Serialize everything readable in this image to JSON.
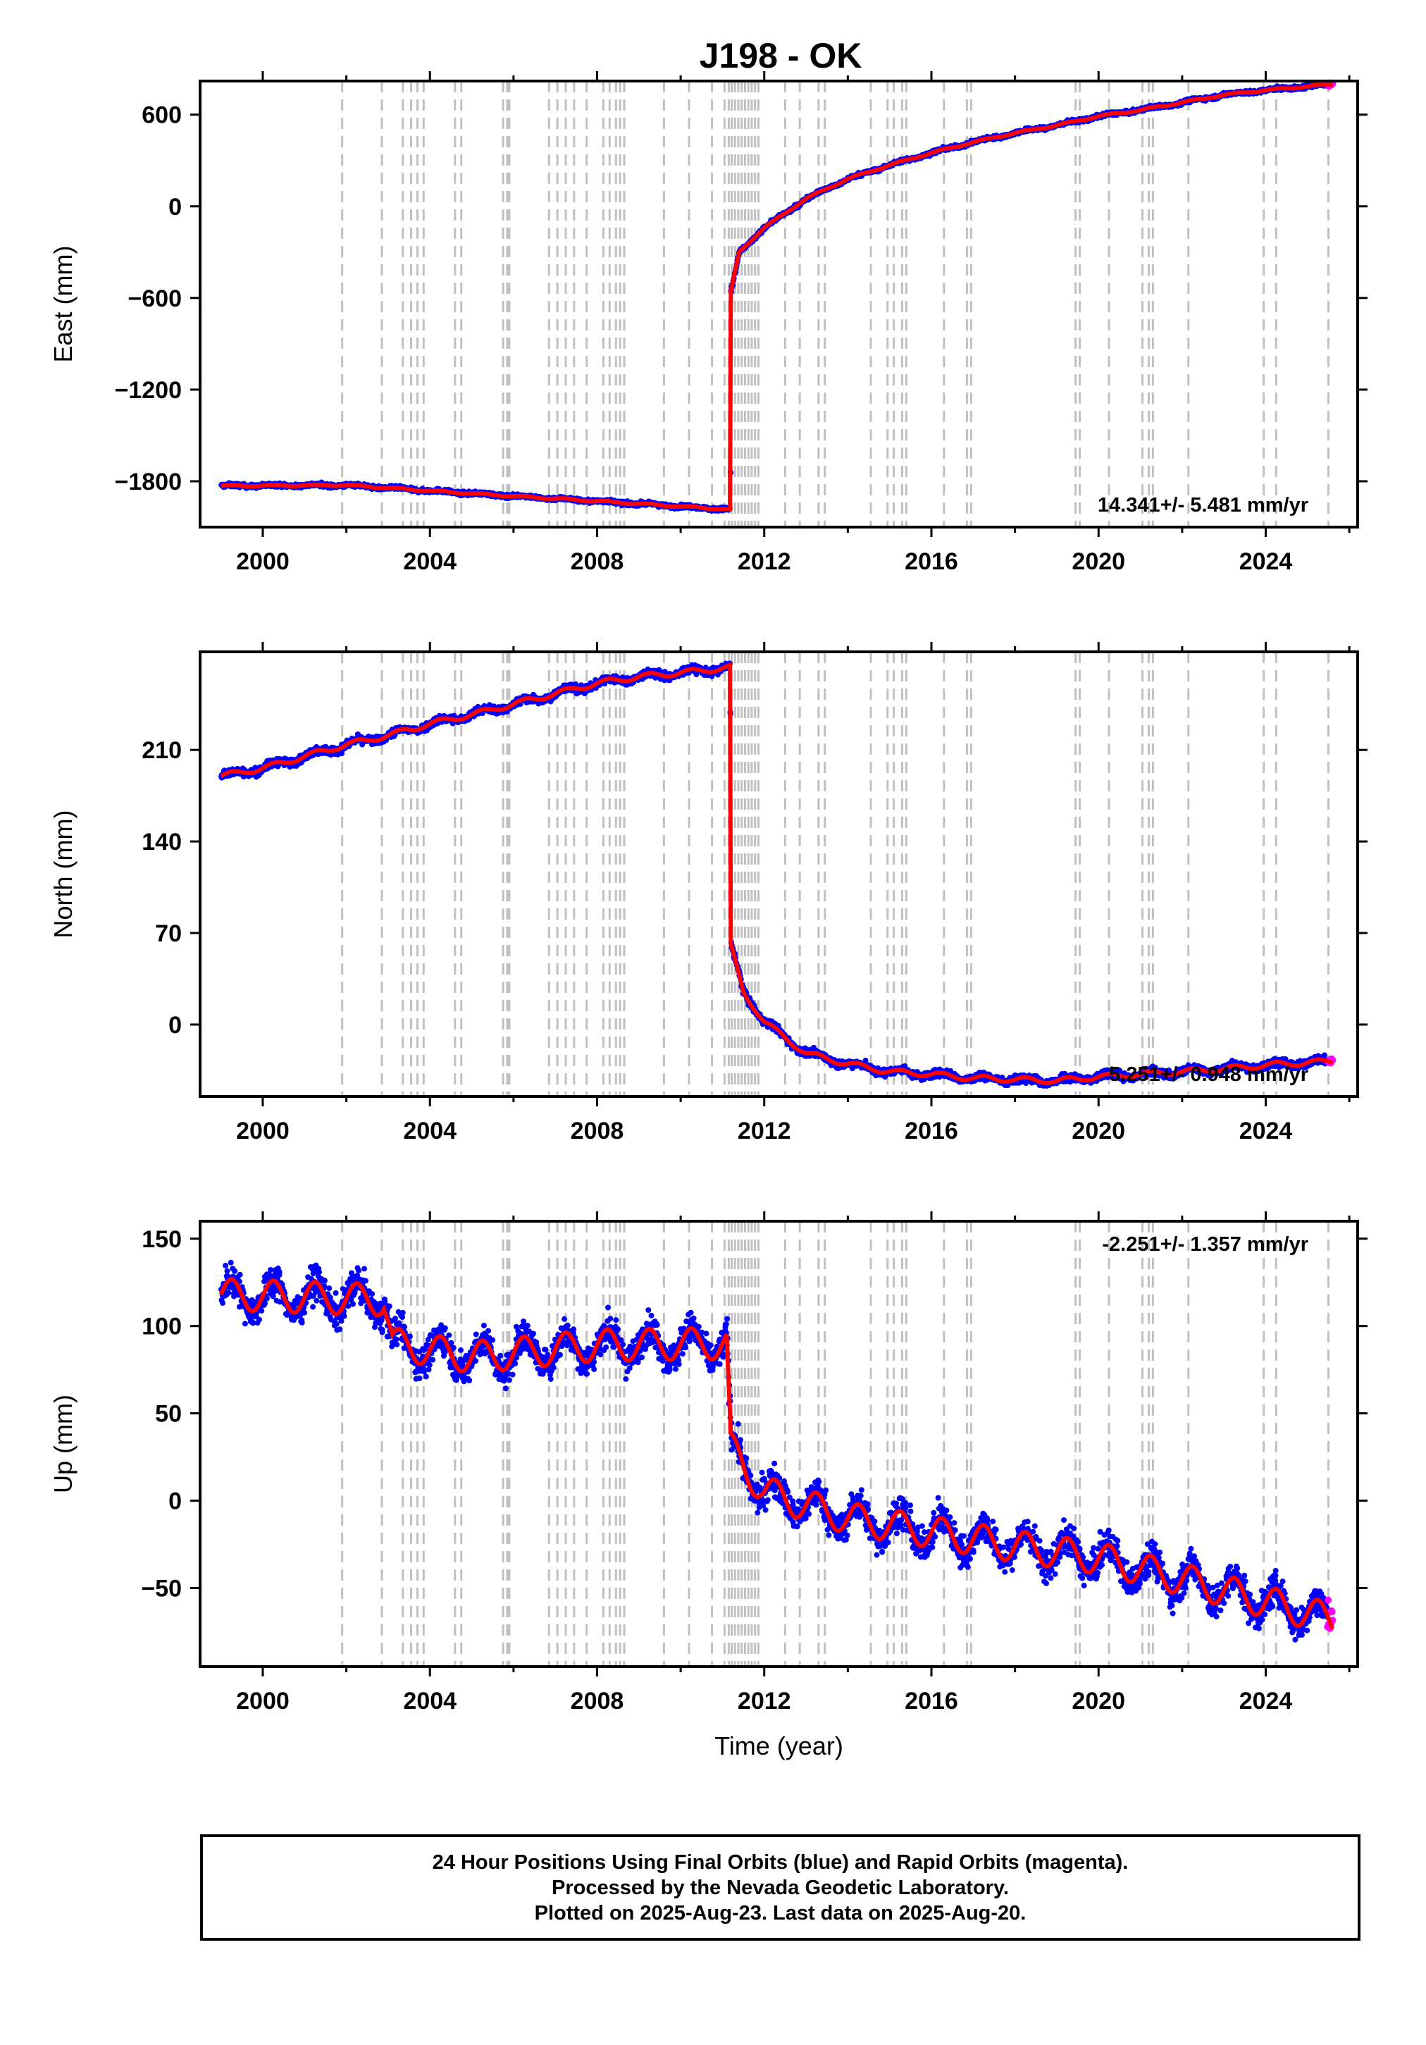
{
  "title": "J198 - OK",
  "footer": {
    "line1": "24 Hour Positions Using Final Orbits (blue) and Rapid Orbits (magenta).",
    "line2": "Processed by the Nevada Geodetic Laboratory.",
    "line3": "Plotted on 2025-Aug-23. Last data on 2025-Aug-20."
  },
  "colors": {
    "final_orbits": "#0000ff",
    "rapid_orbits": "#ff00ff",
    "model": "#ff0000",
    "event_lines": "#c0c0c0"
  },
  "chart_data": [
    {
      "type": "scatter",
      "name": "east",
      "xlabel": "",
      "ylabel": "East (mm)",
      "xlim": [
        1998.5,
        2026.2
      ],
      "ylim": [
        -2100,
        820
      ],
      "xticks": [
        2000,
        2004,
        2008,
        2012,
        2016,
        2020,
        2024
      ],
      "xtick_labels": [
        "2000",
        "2004",
        "2008",
        "2012",
        "2016",
        "2020",
        "2024"
      ],
      "yticks": [
        -1800,
        -1200,
        -600,
        0,
        600
      ],
      "ytick_labels": [
        "−1800",
        "−1200",
        "−600",
        "0",
        "600"
      ],
      "rate_label": "14.341+/- 5.481 mm/yr",
      "trend_points": [
        [
          1999.0,
          -1830
        ],
        [
          2002.0,
          -1825
        ],
        [
          2005.0,
          -1880
        ],
        [
          2008.0,
          -1930
        ],
        [
          2011.18,
          -1985
        ],
        [
          2011.2,
          -560
        ],
        [
          2011.4,
          -300
        ],
        [
          2012.0,
          -140
        ],
        [
          2013.0,
          50
        ],
        [
          2014.0,
          180
        ],
        [
          2015.0,
          270
        ],
        [
          2016.0,
          350
        ],
        [
          2017.0,
          420
        ],
        [
          2018.0,
          480
        ],
        [
          2019.0,
          530
        ],
        [
          2020.0,
          590
        ],
        [
          2021.0,
          630
        ],
        [
          2022.0,
          680
        ],
        [
          2023.0,
          730
        ],
        [
          2024.0,
          760
        ],
        [
          2025.6,
          800
        ]
      ],
      "scatter_spread": 12,
      "annual_amplitude": 5,
      "point_size": 4
    },
    {
      "type": "scatter",
      "name": "north",
      "xlabel": "",
      "ylabel": "North (mm)",
      "xlim": [
        1998.5,
        2026.2
      ],
      "ylim": [
        -55,
        285
      ],
      "xticks": [
        2000,
        2004,
        2008,
        2012,
        2016,
        2020,
        2024
      ],
      "xtick_labels": [
        "2000",
        "2004",
        "2008",
        "2012",
        "2016",
        "2020",
        "2024"
      ],
      "yticks": [
        0,
        70,
        140,
        210
      ],
      "ytick_labels": [
        "0",
        "70",
        "140",
        "210"
      ],
      "rate_label": "5.251+/- 0.948 mm/yr",
      "trend_points": [
        [
          1999.0,
          190
        ],
        [
          2000.0,
          196
        ],
        [
          2001.0,
          205
        ],
        [
          2002.0,
          214
        ],
        [
          2003.0,
          221
        ],
        [
          2004.0,
          230
        ],
        [
          2005.0,
          237
        ],
        [
          2006.0,
          245
        ],
        [
          2007.0,
          253
        ],
        [
          2008.0,
          261
        ],
        [
          2009.0,
          266
        ],
        [
          2010.0,
          269
        ],
        [
          2011.18,
          273
        ],
        [
          2011.2,
          60
        ],
        [
          2011.5,
          25
        ],
        [
          2012.0,
          2
        ],
        [
          2013.0,
          -22
        ],
        [
          2014.0,
          -30
        ],
        [
          2015.0,
          -36
        ],
        [
          2016.0,
          -38
        ],
        [
          2017.0,
          -41
        ],
        [
          2018.0,
          -42
        ],
        [
          2019.0,
          -43
        ],
        [
          2020.0,
          -40
        ],
        [
          2021.0,
          -38
        ],
        [
          2022.0,
          -36
        ],
        [
          2023.0,
          -34
        ],
        [
          2024.0,
          -31
        ],
        [
          2025.6,
          -28
        ]
      ],
      "scatter_spread": 3,
      "annual_amplitude": 2,
      "point_size": 4
    },
    {
      "type": "scatter",
      "name": "up",
      "xlabel": "Time (year)",
      "ylabel": "Up (mm)",
      "xlim": [
        1998.5,
        2026.2
      ],
      "ylim": [
        -95,
        160
      ],
      "xticks": [
        2000,
        2004,
        2008,
        2012,
        2016,
        2020,
        2024
      ],
      "xtick_labels": [
        "2000",
        "2004",
        "2008",
        "2012",
        "2016",
        "2020",
        "2024"
      ],
      "yticks": [
        -50,
        0,
        50,
        100,
        150
      ],
      "ytick_labels": [
        "−50",
        "0",
        "50",
        "100",
        "150"
      ],
      "rate_label": "-2.251+/- 1.357 mm/yr",
      "trend_points": [
        [
          1999.0,
          118
        ],
        [
          2002.9,
          115
        ],
        [
          2003.1,
          90
        ],
        [
          2005.0,
          82
        ],
        [
          2008.0,
          89
        ],
        [
          2011.1,
          90
        ],
        [
          2011.2,
          30
        ],
        [
          2011.5,
          20
        ],
        [
          2012.0,
          5
        ],
        [
          2014.0,
          -10
        ],
        [
          2016.0,
          -18
        ],
        [
          2018.0,
          -26
        ],
        [
          2020.0,
          -33
        ],
        [
          2022.0,
          -45
        ],
        [
          2024.0,
          -58
        ],
        [
          2025.6,
          -68
        ]
      ],
      "scatter_spread": 9,
      "annual_amplitude": 9,
      "point_size": 4
    }
  ],
  "event_lines_years": [
    2001.9,
    2002.85,
    2003.35,
    2003.55,
    2003.7,
    2003.85,
    2004.6,
    2004.75,
    2005.75,
    2005.85,
    2005.9,
    2006.85,
    2007.05,
    2007.25,
    2007.45,
    2007.75,
    2008.15,
    2008.3,
    2008.45,
    2008.55,
    2008.65,
    2009.6,
    2010.2,
    2010.75,
    2011.05,
    2011.15,
    2011.22,
    2011.3,
    2011.38,
    2011.46,
    2011.54,
    2011.62,
    2011.7,
    2011.78,
    2011.86,
    2012.5,
    2012.85,
    2013.3,
    2013.45,
    2014.55,
    2014.95,
    2015.1,
    2015.3,
    2015.4,
    2016.3,
    2016.85,
    2016.95,
    2019.45,
    2019.55,
    2020.25,
    2021.05,
    2021.2,
    2021.3,
    2022.15,
    2023.95,
    2024.25,
    2025.5
  ]
}
